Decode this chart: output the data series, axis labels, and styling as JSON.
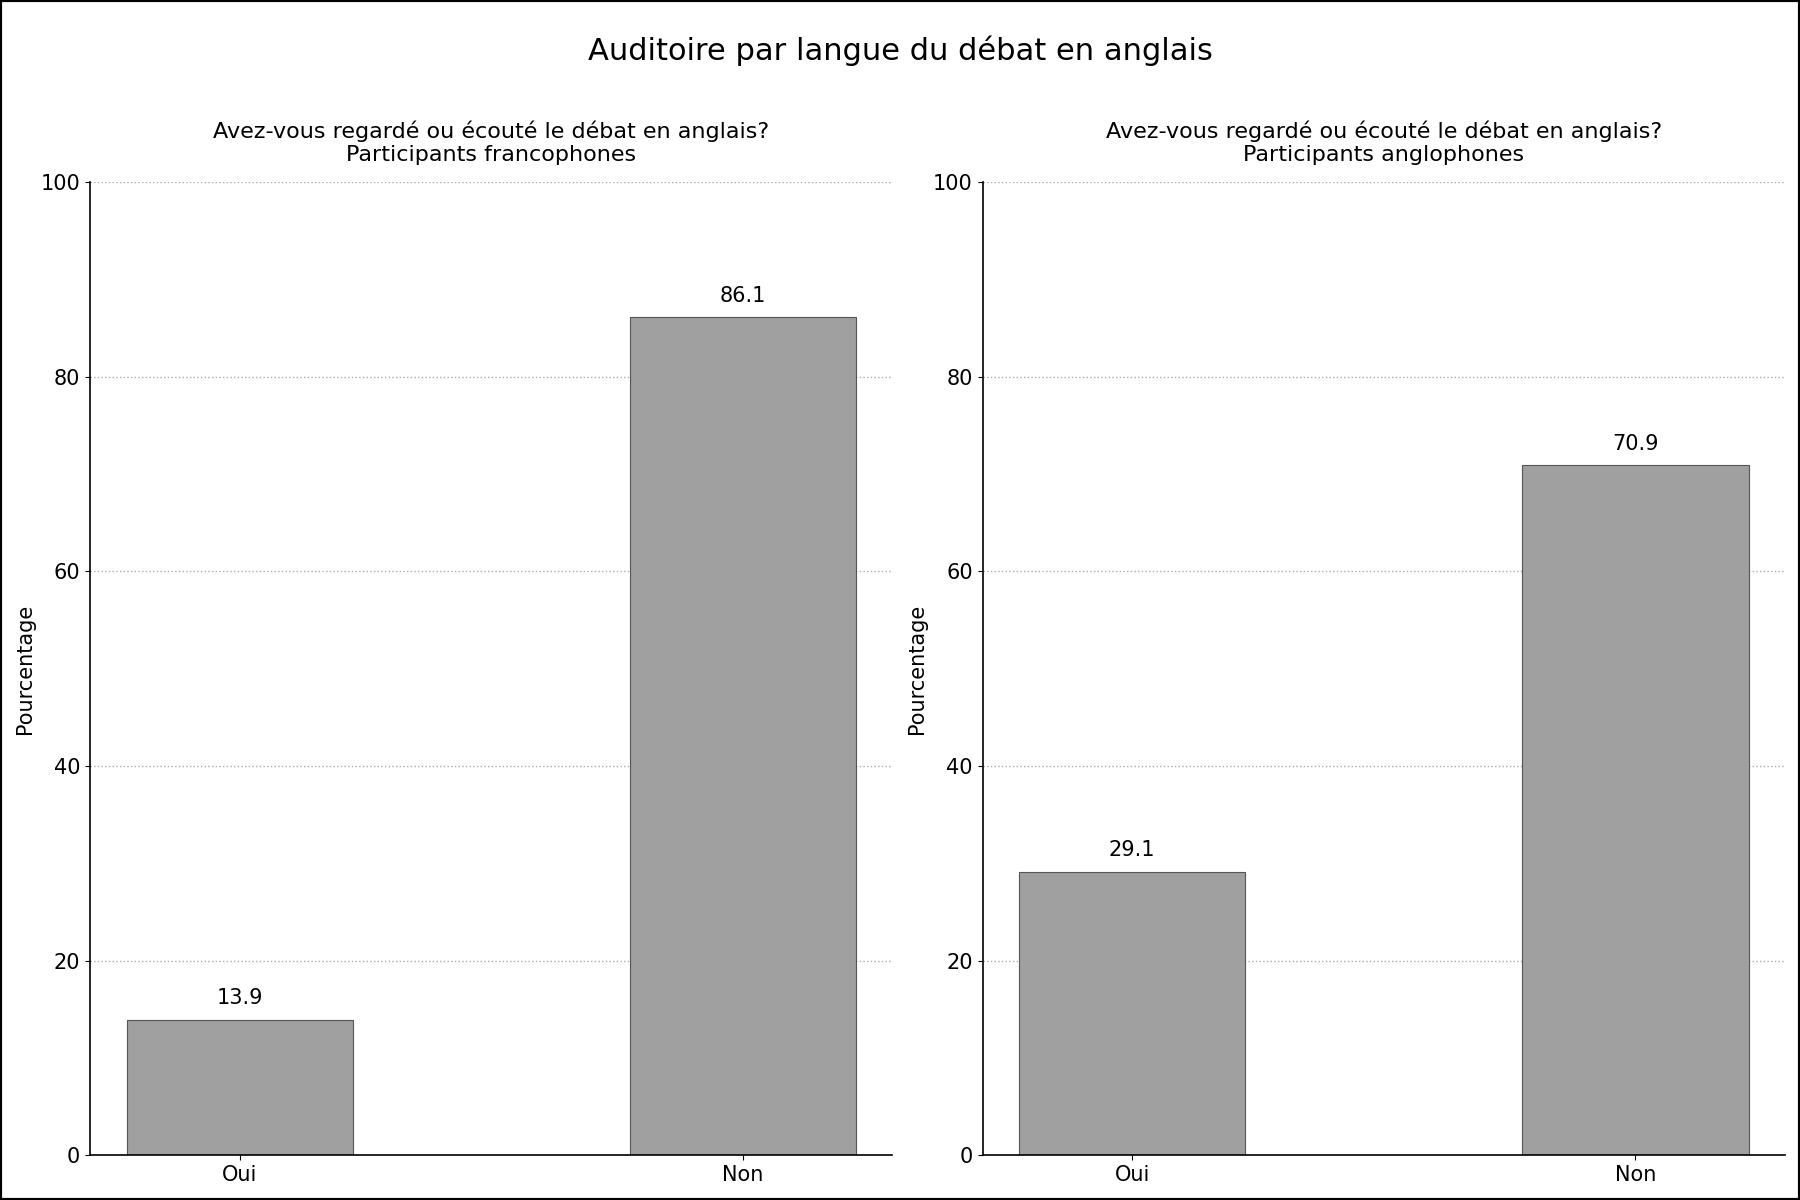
{
  "title": "Auditoire par langue du débat en anglais",
  "title_fontsize": 22,
  "subplot1": {
    "title_line1": "Avez-vous regardé ou écouté le débat en anglais?",
    "title_line2": "Participants francophones",
    "categories": [
      "Oui",
      "Non"
    ],
    "values": [
      13.9,
      86.1
    ],
    "ylabel": "Pourcentage"
  },
  "subplot2": {
    "title_line1": "Avez-vous regardé ou écouté le débat en anglais?",
    "title_line2": "Participants anglophones",
    "categories": [
      "Oui",
      "Non"
    ],
    "values": [
      29.1,
      70.9
    ],
    "ylabel": "Pourcentage"
  },
  "bar_color": "#a0a0a0",
  "bar_edgecolor": "#555555",
  "ylim": [
    0,
    100
  ],
  "yticks": [
    0,
    20,
    40,
    60,
    80,
    100
  ],
  "grid_color": "#aaaaaa",
  "grid_linestyle": ":",
  "grid_linewidth": 1.0,
  "subtitle_fontsize": 16,
  "ylabel_fontsize": 15,
  "tick_fontsize": 15,
  "value_fontsize": 15,
  "background_color": "#ffffff"
}
